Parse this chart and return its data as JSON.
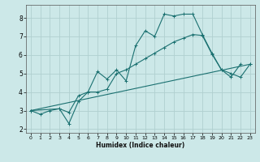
{
  "xlabel": "Humidex (Indice chaleur)",
  "xlim": [
    -0.5,
    23.5
  ],
  "ylim": [
    1.8,
    8.7
  ],
  "yticks": [
    2,
    3,
    4,
    5,
    6,
    7,
    8
  ],
  "xticks": [
    0,
    1,
    2,
    3,
    4,
    5,
    6,
    7,
    8,
    9,
    10,
    11,
    12,
    13,
    14,
    15,
    16,
    17,
    18,
    19,
    20,
    21,
    22,
    23
  ],
  "bg_color": "#cce8e8",
  "grid_color": "#b0d0d0",
  "line_color": "#1a7070",
  "s1x": [
    0,
    1,
    2,
    3,
    4,
    5,
    6,
    7,
    8,
    9,
    10,
    11,
    12,
    13,
    14,
    15,
    16,
    17,
    18,
    19,
    20,
    21,
    22
  ],
  "s1y": [
    3.0,
    2.8,
    3.0,
    3.1,
    2.3,
    3.5,
    4.0,
    5.1,
    4.7,
    5.2,
    4.6,
    6.5,
    7.3,
    7.0,
    8.2,
    8.1,
    8.2,
    8.2,
    7.1,
    6.1,
    5.2,
    4.8,
    5.5
  ],
  "s2x": [
    0,
    3,
    4,
    5,
    6,
    7,
    8,
    9,
    10,
    11,
    12,
    13,
    14,
    15,
    16,
    17,
    18,
    19,
    20,
    21,
    22,
    23
  ],
  "s2y": [
    3.0,
    3.1,
    2.9,
    3.8,
    4.0,
    4.0,
    4.15,
    5.0,
    5.2,
    5.5,
    5.8,
    6.1,
    6.4,
    6.7,
    6.9,
    7.1,
    7.05,
    6.05,
    5.2,
    5.0,
    4.8,
    5.5
  ],
  "s3x": [
    0,
    23
  ],
  "s3y": [
    3.0,
    5.5
  ]
}
